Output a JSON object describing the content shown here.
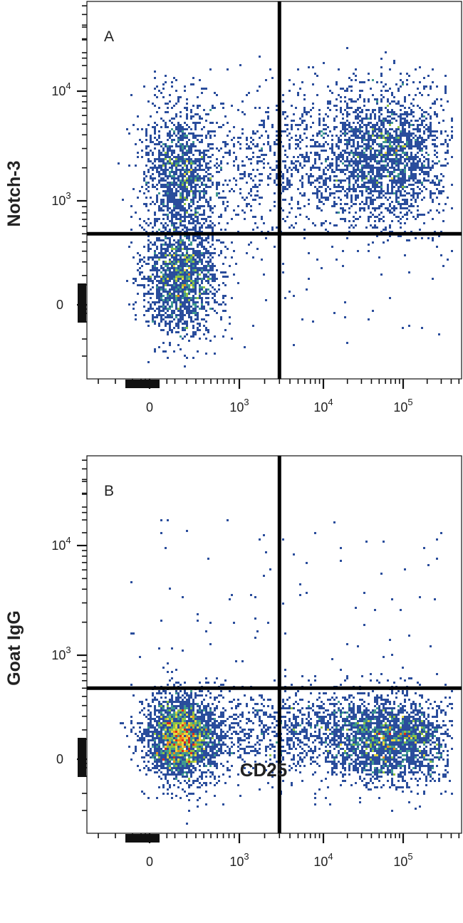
{
  "chart_data": [
    {
      "type": "scatter",
      "panel_label": "A",
      "ylabel": "Notch-3",
      "xlabel": "CD25",
      "x_scale": "biexponential",
      "y_scale": "biexponential",
      "x_ticks": [
        {
          "base": "0",
          "exp": ""
        },
        {
          "base": "10",
          "exp": "3"
        },
        {
          "base": "10",
          "exp": "4"
        },
        {
          "base": "10",
          "exp": "5"
        }
      ],
      "y_ticks": [
        {
          "base": "0",
          "exp": ""
        },
        {
          "base": "10",
          "exp": "3"
        },
        {
          "base": "10",
          "exp": "4"
        }
      ],
      "quadrant_gate": {
        "x": 3000,
        "y": 500
      },
      "populations": [
        {
          "name": "",
          "x_center": 150,
          "y_center": 80,
          "count": 1700
        },
        {
          "name": "",
          "x_center": 150,
          "y_center": 1800,
          "count": 1300
        },
        {
          "name": "",
          "x_center": 60000,
          "y_center": 2500,
          "count": 2000
        },
        {
          "name": "",
          "x_center": 5000,
          "y_center": 2200,
          "count": 900
        }
      ],
      "density_colors": [
        "#2a4d9c",
        "#3f9a8f",
        "#8fc443",
        "#e9d840",
        "#ef8a1c",
        "#d9281c"
      ]
    },
    {
      "type": "scatter",
      "panel_label": "B",
      "ylabel": "Goat IgG",
      "xlabel": "CD25",
      "x_scale": "biexponential",
      "y_scale": "biexponential",
      "x_ticks": [
        {
          "base": "0",
          "exp": ""
        },
        {
          "base": "10",
          "exp": "3"
        },
        {
          "base": "10",
          "exp": "4"
        },
        {
          "base": "10",
          "exp": "5"
        }
      ],
      "y_ticks": [
        {
          "base": "0",
          "exp": ""
        },
        {
          "base": "10",
          "exp": "3"
        },
        {
          "base": "10",
          "exp": "4"
        }
      ],
      "quadrant_gate": {
        "x": 3000,
        "y": 500
      },
      "populations": [
        {
          "name": "",
          "x_center": 150,
          "y_center": 60,
          "count": 2600
        },
        {
          "name": "",
          "x_center": 70000,
          "y_center": 50,
          "count": 2200
        },
        {
          "name": "",
          "x_center": 5000,
          "y_center": 80,
          "count": 1000
        }
      ],
      "density_colors": [
        "#2a4d9c",
        "#3f9a8f",
        "#8fc443",
        "#e9d840",
        "#ef8a1c",
        "#d9281c"
      ]
    }
  ],
  "shared_xlabel": "CD25"
}
